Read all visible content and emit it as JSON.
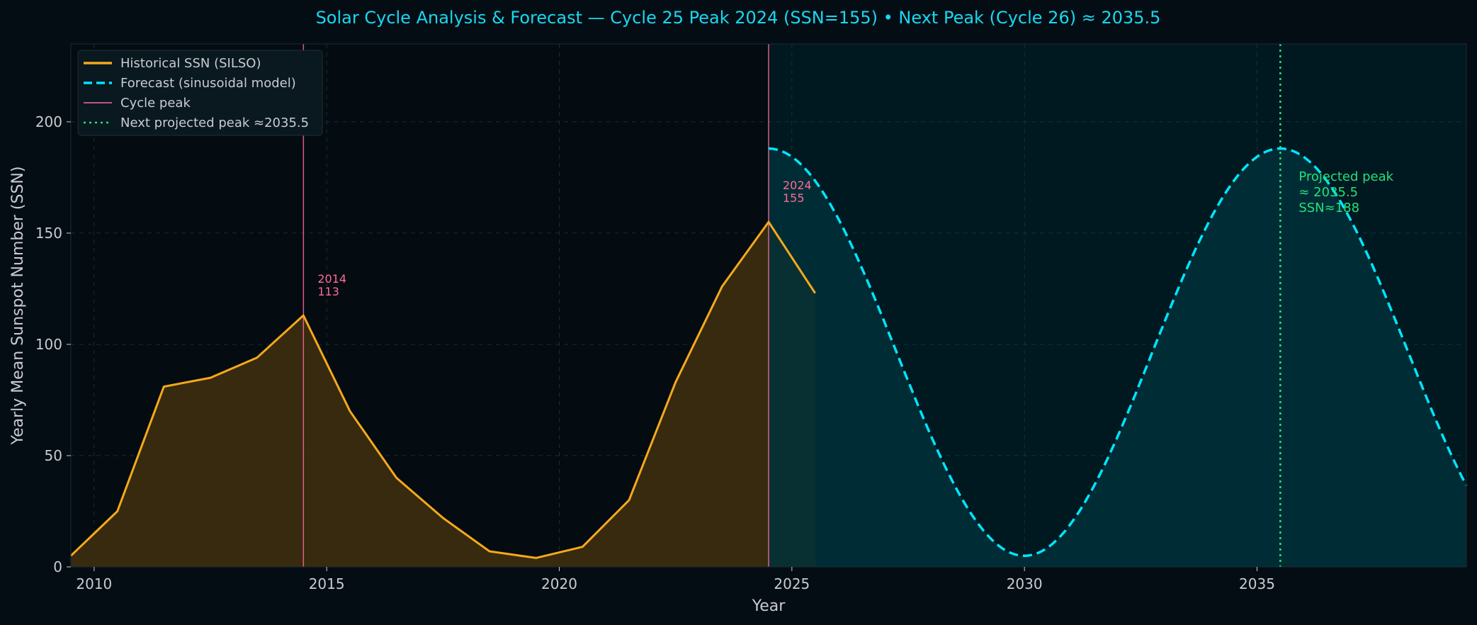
{
  "title": "Solar Cycle Analysis & Forecast — Cycle 25 Peak 2024 (SSN=155)   •   Next Peak (Cycle 26) ≈ 2035.5",
  "colors": {
    "background": "#050d14",
    "plot_background": "#040b11",
    "forecast_region": "#001820",
    "historical": "#f5a91c",
    "historical_fill": "#3a2c0f",
    "forecast": "#00e5ff",
    "forecast_fill": "#00313a",
    "cycle_peak": "#ff6b9a",
    "next_peak": "#26e07a",
    "title": "#18d8f0",
    "text": "#c8ccd0"
  },
  "chart_data": {
    "type": "line",
    "title": "Solar Cycle Analysis & Forecast — Cycle 25 Peak 2024 (SSN=155)   •   Next Peak (Cycle 26) ≈ 2035.5",
    "xlabel": "Year",
    "ylabel": "Yearly Mean Sunspot Number (SSN)",
    "xlim": [
      2009.5,
      2039.5
    ],
    "ylim": [
      0,
      235
    ],
    "x_ticks": [
      2010,
      2015,
      2020,
      2025,
      2030,
      2035
    ],
    "y_ticks": [
      0,
      50,
      100,
      150,
      200
    ],
    "grid": true,
    "legend_position": "top-left",
    "series": [
      {
        "name": "Historical SSN (SILSO)",
        "style": "solid",
        "x": [
          2009.5,
          2010.5,
          2011.5,
          2012.5,
          2013.5,
          2014.5,
          2015.5,
          2016.5,
          2017.5,
          2018.5,
          2019.5,
          2020.5,
          2021.5,
          2022.5,
          2023.5,
          2024.5,
          2025.5
        ],
        "y": [
          5,
          25,
          81,
          85,
          94,
          113,
          70,
          40,
          22,
          7,
          4,
          9,
          30,
          83,
          126,
          155,
          123
        ]
      },
      {
        "name": "Forecast (sinusoidal model)",
        "style": "dashed",
        "model": {
          "mean": 96.5,
          "amplitude": 91.5,
          "period": 11,
          "peak_at": 2024.5
        },
        "x_range": [
          2024.5,
          2039.5
        ]
      }
    ],
    "cycle_peaks": [
      {
        "year": 2014.5,
        "label_year": "2014",
        "label_value": "113"
      },
      {
        "year": 2024.5,
        "label_year": "2024",
        "label_value": "155"
      }
    ],
    "cycle_peak_legend": "Cycle peak",
    "next_peak": {
      "year": 2035.5,
      "legend": "Next projected peak ≈2035.5",
      "annotation": [
        "Projected peak",
        "≈ 2035.5",
        "SSN≈188"
      ]
    }
  }
}
